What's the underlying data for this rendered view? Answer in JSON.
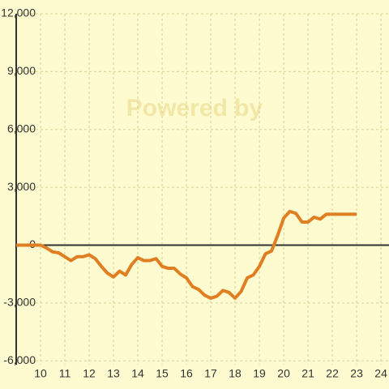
{
  "chart_data": {
    "type": "line",
    "watermark": "Powered by",
    "x": [
      9,
      10,
      10.25,
      10.5,
      10.75,
      11,
      11.25,
      11.5,
      11.75,
      12,
      12.25,
      12.5,
      12.75,
      13,
      13.25,
      13.5,
      13.75,
      14,
      14.25,
      14.5,
      14.75,
      15,
      15.25,
      15.5,
      15.75,
      16,
      16.25,
      16.5,
      16.75,
      17,
      17.25,
      17.5,
      17.75,
      18,
      18.25,
      18.5,
      18.75,
      19,
      19.25,
      19.5,
      19.75,
      20,
      20.25,
      20.5,
      20.75,
      21,
      21.25,
      21.5,
      21.75,
      22,
      22.5,
      23
    ],
    "series": [
      {
        "color": "#e07e22",
        "values": [
          0,
          0,
          -150,
          -350,
          -400,
          -600,
          -800,
          -600,
          -600,
          -500,
          -700,
          -1100,
          -1450,
          -1650,
          -1350,
          -1550,
          -1000,
          -650,
          -800,
          -800,
          -700,
          -1100,
          -1200,
          -1200,
          -1500,
          -1700,
          -2150,
          -2300,
          -2600,
          -2750,
          -2650,
          -2350,
          -2450,
          -2750,
          -2400,
          -1700,
          -1550,
          -1100,
          -450,
          -300,
          500,
          1400,
          1750,
          1650,
          1200,
          1200,
          1450,
          1350,
          1600,
          1600,
          1600,
          1600
        ]
      }
    ],
    "xlim": [
      9,
      24.33
    ],
    "xticks": [
      10,
      11,
      12,
      13,
      14,
      15,
      16,
      17,
      18,
      19,
      20,
      21,
      22,
      23,
      24
    ],
    "ylim": [
      -6200,
      12000
    ],
    "yticks": [
      {
        "value": 12000,
        "label": "12,000"
      },
      {
        "value": 9000,
        "label": "9,000"
      },
      {
        "value": 6000,
        "label": "6,000"
      },
      {
        "value": 3000,
        "label": "3,000"
      },
      0,
      {
        "value": -3000,
        "label": "-3,000"
      },
      {
        "value": -6000,
        "label": "-6,000"
      }
    ],
    "grid": true
  }
}
